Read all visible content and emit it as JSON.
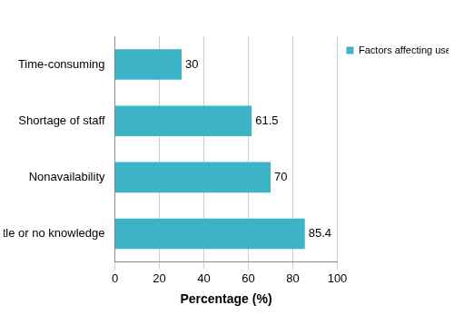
{
  "chart_data": {
    "type": "bar",
    "orientation": "horizontal",
    "categories": [
      "Time-consuming",
      "Shortage of staff",
      "Nonavailability",
      "Little or no knowledge"
    ],
    "series": [
      {
        "name": "Factors affecting use of partograph",
        "color": "#3cb3c6",
        "values": [
          30,
          61.5,
          70,
          85.4
        ]
      }
    ],
    "x_label": "Percentage (%)",
    "xlim": [
      0,
      100
    ],
    "xticks": [
      0,
      20,
      40,
      60,
      80,
      100
    ],
    "grid": true,
    "legend": "right",
    "data_labels": true
  }
}
